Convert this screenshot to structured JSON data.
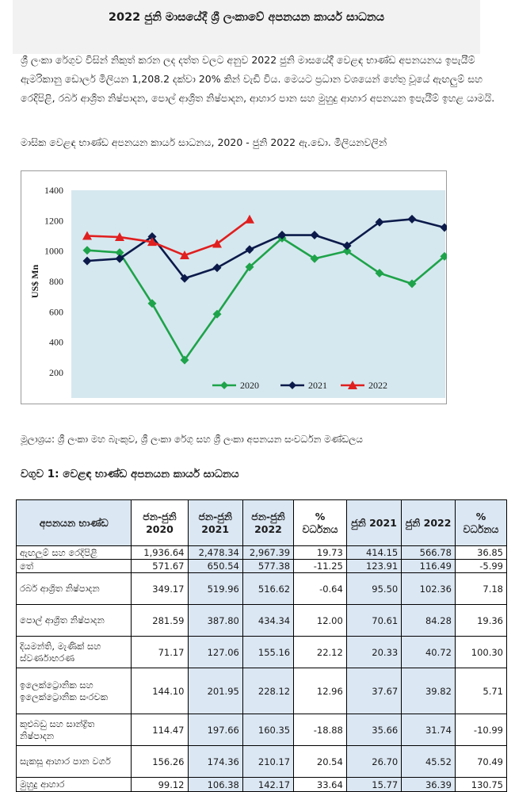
{
  "header": {
    "title": "2022 ජුනි මාසයේදී ශ්‍රී ලංකාවේ අපනයන කාර්ය සාධනය"
  },
  "intro": "ශ්‍රී ලංකා රේගුව විසින් නිකුත් කරන ලද දත්ත වලට අනුව 2022 ජුනි මාසයේදී වෙළඳ භාණ්ඩ අපනයනය ඉපැයීම් ඇමරිකානු ඩොලර් මිලියන 1,208.2 දක්වා 20% කින් වැඩි විය. මෙයට ප්‍රධාන වශයෙන් හේතු වූයේ ඇඟලුම් සහ රෙදිපිළි, රබර් ආශ්‍රිත නිෂ්පාදන, පොල් ආශ්‍රිත නිෂ්පාදන, ආහාර පාන සහ මුහුදු ආහාර අපනයන ඉපැයීම් ඉහළ යාමයි.",
  "chart_caption": "මාසික වෙළඳ භාණ්ඩ අපනයන කාර්ය සාධනය, 2020 - ජුනි 2022 ඇ.ඩො. මිලියනවලින්",
  "chart_data": {
    "type": "line",
    "ylabel": "US$ Mn",
    "ylim": [
      200,
      1400
    ],
    "yticks": [
      1400,
      1200,
      1000,
      800,
      600,
      400,
      200
    ],
    "grid": false,
    "legend": "bottom",
    "months": 12,
    "series": [
      {
        "name": "2020",
        "color": "#1ea34a",
        "marker": "diamond",
        "values": [
          1005,
          990,
          655,
          283,
          585,
          895,
          1085,
          950,
          1000,
          855,
          785,
          965
        ]
      },
      {
        "name": "2021",
        "color": "#0b1a4a",
        "marker": "diamond",
        "values": [
          935,
          950,
          1095,
          820,
          890,
          1010,
          1105,
          1105,
          1035,
          1190,
          1210,
          1155
        ]
      },
      {
        "name": "2022",
        "color": "#e01f1f",
        "marker": "triangle",
        "values": [
          1100,
          1092,
          1060,
          972,
          1048,
          1208
        ]
      }
    ]
  },
  "source": "මූලාශ්‍රය: ශ්‍රී ලංකා මහ බැංකුව, ශ්‍රී ලංකා රේගු සහ ශ්‍රී ලංකා අපනයන සංවර්ධන මණ්ඩලය",
  "table": {
    "heading": "වගුව 1: වෙළඳ භාණ්ඩ අපනයන කාර්ය සාධනය",
    "headers": [
      "අපනයන භාණ්ඩ",
      "ජන-ජුනි 2020",
      "ජන-ජුනි 2021",
      "ජන-ජුනි 2022",
      "% වර්ධනය",
      "ජුනි 2021",
      "ජුනි 2022",
      "% වර්ධනය"
    ],
    "rows": [
      [
        "ඇඟලුම් සහ රෙදිපිළි",
        "1,936.64",
        "2,478.34",
        "2,967.39",
        "19.73",
        "414.15",
        "566.78",
        "36.85"
      ],
      [
        "තේ",
        "571.67",
        "650.54",
        "577.38",
        "-11.25",
        "123.91",
        "116.49",
        "-5.99"
      ],
      [
        "රබර් ආශ්‍රිත නිෂ්පාදන",
        "349.17",
        "519.96",
        "516.62",
        "-0.64",
        "95.50",
        "102.36",
        "7.18"
      ],
      [
        "පොල් ආශ්‍රිත නිෂ්පාදන",
        "281.59",
        "387.80",
        "434.34",
        "12.00",
        "70.61",
        "84.28",
        "19.36"
      ],
      [
        "දියමන්ති, මැණික් සහ ස්වර්ණාභරණ",
        "71.17",
        "127.06",
        "155.16",
        "22.12",
        "20.33",
        "40.72",
        "100.30"
      ],
      [
        "ඉලෙක්ට්‍රොනික සහ ඉලෙක්ට්‍රොනික සංරචක",
        "144.10",
        "201.95",
        "228.12",
        "12.96",
        "37.67",
        "39.82",
        "5.71"
      ],
      [
        "කුළුබඩු සහ සාන්ද්‍රිත නිෂ්පාදන",
        "114.47",
        "197.66",
        "160.35",
        "-18.88",
        "35.66",
        "31.74",
        "-10.99"
      ],
      [
        "සැකසූ ආහාර පාන වර්ග",
        "156.26",
        "174.36",
        "210.17",
        "20.54",
        "26.70",
        "45.52",
        "70.49"
      ],
      [
        "මුහුදු ආහාර",
        "99.12",
        "106.38",
        "142.17",
        "33.64",
        "15.77",
        "36.39",
        "130.75"
      ]
    ]
  }
}
